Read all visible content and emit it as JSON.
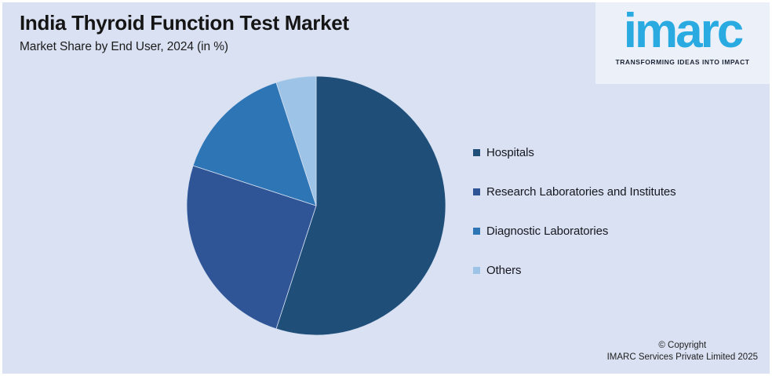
{
  "page": {
    "background": "#D9E1F2",
    "border_color": "#FFFFFF"
  },
  "header": {
    "title": "India Thyroid Function Test Market",
    "subtitle": "Market Share by End User, 2024 (in %)"
  },
  "brand": {
    "wordmark": "imarc",
    "tagline": "TRANSFORMING IDEAS INTO IMPACT",
    "wordmark_color": "#29ABE2",
    "panel_color": "#ECF1F9"
  },
  "chart_data": {
    "type": "pie",
    "title": "India Thyroid Function Test Market",
    "subtitle": "Market Share by End User, 2024 (in %)",
    "unit": "%",
    "labels": [
      "Hospitals",
      "Research Laboratories and Institutes",
      "Diagnostic Laboratories",
      "Others"
    ],
    "values": [
      55,
      25,
      15,
      5
    ],
    "colors": [
      "#1F4E79",
      "#2F5597",
      "#2E75B6",
      "#9DC3E6"
    ],
    "start_angle_deg": 0,
    "direction": "clockwise",
    "legend_position": "right",
    "data_labels_shown": false,
    "separator_color": "#D3DEF0"
  },
  "footer": {
    "copyright_line1": "© Copyright",
    "copyright_line2": "IMARC Services Private Limited 2025"
  }
}
